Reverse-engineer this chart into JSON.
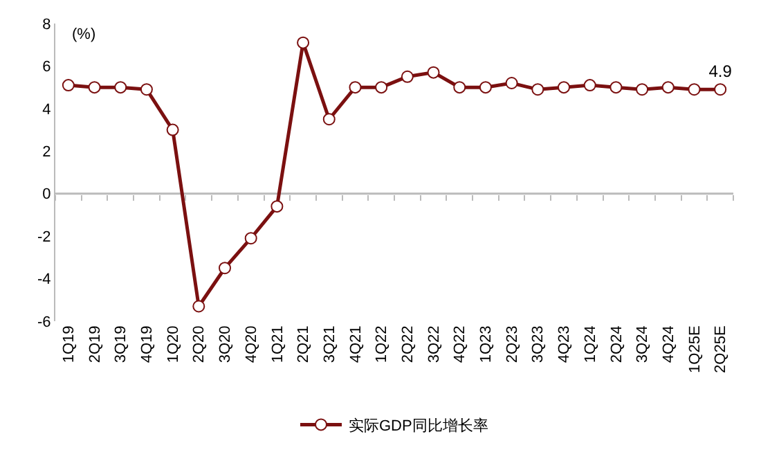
{
  "chart_data": {
    "type": "line",
    "ylabel": "(%)",
    "categories": [
      "1Q19",
      "2Q19",
      "3Q19",
      "4Q19",
      "1Q20",
      "2Q20",
      "3Q20",
      "4Q20",
      "1Q21",
      "2Q21",
      "3Q21",
      "4Q21",
      "1Q22",
      "2Q22",
      "3Q22",
      "4Q22",
      "1Q23",
      "2Q23",
      "3Q23",
      "4Q23",
      "1Q24",
      "2Q24",
      "3Q24",
      "4Q24",
      "1Q25E",
      "2Q25E"
    ],
    "series": [
      {
        "name": "实际GDP同比增长率",
        "color": "#7b1010",
        "values": [
          5.1,
          5.0,
          5.0,
          4.9,
          3.0,
          -5.3,
          -3.5,
          -2.1,
          -0.6,
          7.1,
          3.5,
          5.0,
          5.0,
          5.5,
          5.7,
          5.0,
          5.0,
          5.2,
          4.9,
          5.0,
          5.1,
          5.0,
          4.9,
          5.0,
          4.9,
          4.9
        ],
        "value_labels": [
          null,
          null,
          null,
          null,
          null,
          null,
          null,
          null,
          null,
          null,
          null,
          null,
          null,
          null,
          null,
          null,
          null,
          null,
          null,
          null,
          null,
          null,
          null,
          null,
          null,
          "4.9"
        ]
      }
    ],
    "ylim": [
      -6,
      8
    ],
    "yticks": [
      -6,
      -4,
      -2,
      0,
      2,
      4,
      6,
      8
    ],
    "ref_lines": [
      {
        "axis": "y",
        "value": 0,
        "color": "#bbbbbb"
      }
    ],
    "legend": "bottom",
    "marker": "circle",
    "line_style": "solid"
  }
}
